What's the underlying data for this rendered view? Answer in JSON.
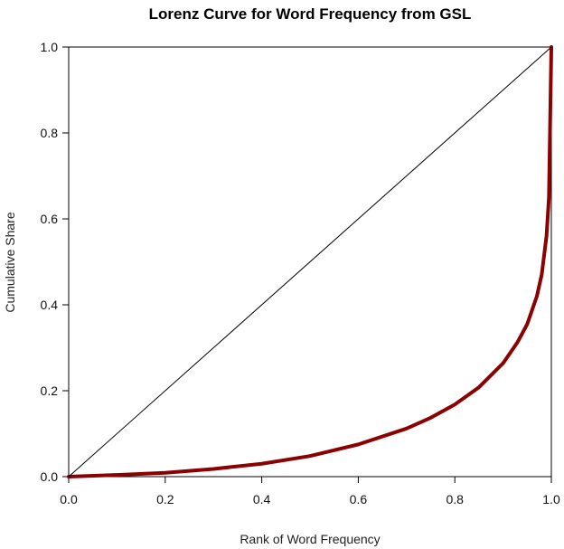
{
  "chart_data": {
    "type": "line",
    "title": "Lorenz Curve for Word Frequency from GSL",
    "xlabel": "Rank of Word Frequency",
    "ylabel": "Cumulative Share",
    "xlim": [
      0,
      1
    ],
    "ylim": [
      0,
      1
    ],
    "xticks": [
      "0.0",
      "0.2",
      "0.4",
      "0.6",
      "0.8",
      "1.0"
    ],
    "yticks": [
      "0.0",
      "0.2",
      "0.4",
      "0.6",
      "0.8",
      "1.0"
    ],
    "grid": false,
    "legend": "none",
    "series": [
      {
        "role": "lorenz-curve",
        "color": "#8b0000",
        "x": [
          0,
          0.1,
          0.2,
          0.3,
          0.4,
          0.5,
          0.6,
          0.7,
          0.75,
          0.8,
          0.85,
          0.9,
          0.93,
          0.95,
          0.97,
          0.98,
          0.99,
          0.995,
          1.0
        ],
        "y": [
          0,
          0.004,
          0.009,
          0.018,
          0.03,
          0.048,
          0.075,
          0.112,
          0.137,
          0.168,
          0.208,
          0.264,
          0.313,
          0.355,
          0.42,
          0.47,
          0.56,
          0.65,
          1.0
        ]
      },
      {
        "role": "equality-line",
        "color": "#000000",
        "x": [
          0,
          1
        ],
        "y": [
          0,
          1
        ]
      }
    ]
  }
}
